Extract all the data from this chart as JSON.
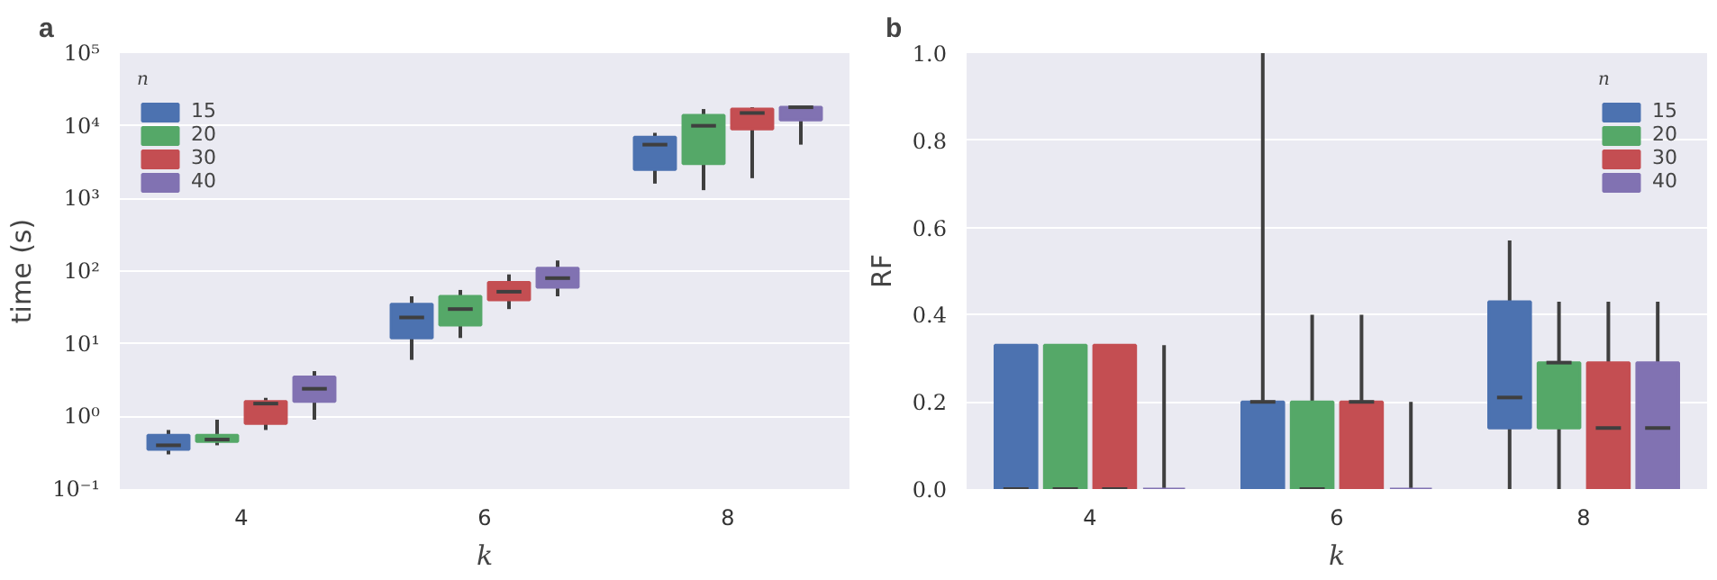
{
  "chart_data": [
    {
      "type": "box",
      "title": "a",
      "xlabel": "k",
      "ylabel": "time (s)",
      "legend_title": "n",
      "categories": [
        "4",
        "6",
        "8"
      ],
      "log": "y",
      "ylim": [
        0.1,
        100000
      ],
      "yticks": [
        {
          "value": 0.1,
          "label": "10⁻¹"
        },
        {
          "value": 1,
          "label": "10⁰"
        },
        {
          "value": 10,
          "label": "10¹"
        },
        {
          "value": 100,
          "label": "10²"
        },
        {
          "value": 1000,
          "label": "10³"
        },
        {
          "value": 10000,
          "label": "10⁴"
        },
        {
          "value": 100000,
          "label": "10⁵"
        }
      ],
      "grid": "y",
      "legend": "top left",
      "series": [
        {
          "name": "15",
          "color": "#4c72b0",
          "boxes": [
            {
              "low": 0.3,
              "q1": 0.35,
              "median": 0.4,
              "q3": 0.55,
              "high": 0.65
            },
            {
              "low": 6,
              "q1": 12,
              "median": 23,
              "q3": 35,
              "high": 45
            },
            {
              "low": 1600,
              "q1": 2500,
              "median": 5500,
              "q3": 7000,
              "high": 8000
            }
          ]
        },
        {
          "name": "20",
          "color": "#55a868",
          "boxes": [
            {
              "low": 0.4,
              "q1": 0.45,
              "median": 0.48,
              "q3": 0.55,
              "high": 0.9
            },
            {
              "low": 12,
              "q1": 18,
              "median": 30,
              "q3": 45,
              "high": 55
            },
            {
              "low": 1300,
              "q1": 3000,
              "median": 10000,
              "q3": 14000,
              "high": 17000
            }
          ]
        },
        {
          "name": "30",
          "color": "#c44e52",
          "boxes": [
            {
              "low": 0.65,
              "q1": 0.8,
              "median": 1.5,
              "q3": 1.6,
              "high": 1.8
            },
            {
              "low": 30,
              "q1": 40,
              "median": 52,
              "q3": 70,
              "high": 90
            },
            {
              "low": 1900,
              "q1": 9000,
              "median": 15000,
              "q3": 17000,
              "high": 18000
            }
          ]
        },
        {
          "name": "40",
          "color": "#8172b2",
          "boxes": [
            {
              "low": 0.9,
              "q1": 1.6,
              "median": 2.4,
              "q3": 3.5,
              "high": 4.2
            },
            {
              "low": 45,
              "q1": 60,
              "median": 80,
              "q3": 110,
              "high": 140
            },
            {
              "low": 5500,
              "q1": 12000,
              "median": 18000,
              "q3": 18000,
              "high": 18000
            }
          ]
        }
      ]
    },
    {
      "type": "box",
      "title": "b",
      "xlabel": "k",
      "ylabel": "RF",
      "legend_title": "n",
      "categories": [
        "4",
        "6",
        "8"
      ],
      "ylim": [
        0,
        1
      ],
      "yticks": [
        {
          "value": 0,
          "label": "0.0"
        },
        {
          "value": 0.2,
          "label": "0.2"
        },
        {
          "value": 0.4,
          "label": "0.4"
        },
        {
          "value": 0.6,
          "label": "0.6"
        },
        {
          "value": 0.8,
          "label": "0.8"
        },
        {
          "value": 1,
          "label": "1.0"
        }
      ],
      "grid": "y",
      "legend": "top right",
      "series": [
        {
          "name": "15",
          "color": "#4c72b0",
          "boxes": [
            {
              "low": 0,
              "q1": 0,
              "median": 0,
              "q3": 0.33,
              "high": 0.33
            },
            {
              "low": 0,
              "q1": 0,
              "median": 0.2,
              "q3": 0.2,
              "high": 1.0
            },
            {
              "low": 0,
              "q1": 0.14,
              "median": 0.21,
              "q3": 0.43,
              "high": 0.57
            }
          ]
        },
        {
          "name": "20",
          "color": "#55a868",
          "boxes": [
            {
              "low": 0,
              "q1": 0,
              "median": 0,
              "q3": 0.33,
              "high": 0.33
            },
            {
              "low": 0,
              "q1": 0,
              "median": 0,
              "q3": 0.2,
              "high": 0.4
            },
            {
              "low": 0,
              "q1": 0.14,
              "median": 0.29,
              "q3": 0.29,
              "high": 0.43
            }
          ]
        },
        {
          "name": "30",
          "color": "#c44e52",
          "boxes": [
            {
              "low": 0,
              "q1": 0,
              "median": 0,
              "q3": 0.33,
              "high": 0.33
            },
            {
              "low": 0,
              "q1": 0,
              "median": 0.2,
              "q3": 0.2,
              "high": 0.4
            },
            {
              "low": 0,
              "q1": 0,
              "median": 0.14,
              "q3": 0.29,
              "high": 0.43
            }
          ]
        },
        {
          "name": "40",
          "color": "#8172b2",
          "boxes": [
            {
              "low": 0,
              "q1": 0,
              "median": 0,
              "q3": 0,
              "high": 0.33
            },
            {
              "low": 0,
              "q1": 0,
              "median": 0,
              "q3": 0,
              "high": 0.2
            },
            {
              "low": 0,
              "q1": 0,
              "median": 0.14,
              "q3": 0.29,
              "high": 0.43
            }
          ]
        }
      ]
    }
  ]
}
